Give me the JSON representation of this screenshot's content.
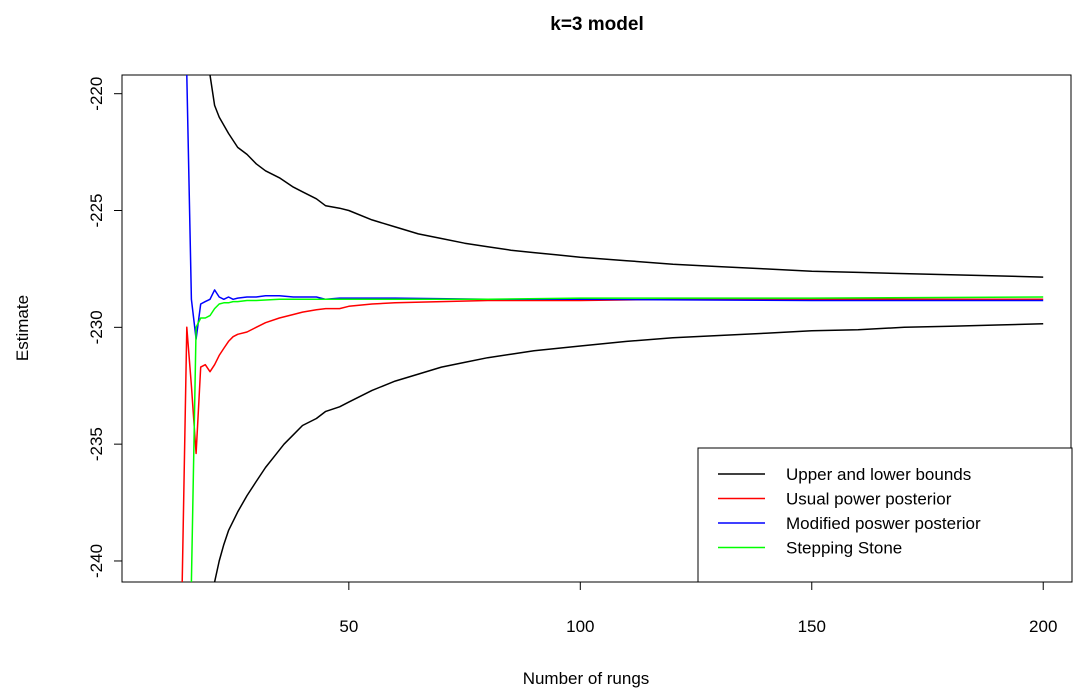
{
  "chart_data": {
    "type": "line",
    "title": "k=3 model",
    "xlabel": "Number of rungs",
    "ylabel": "Estimate",
    "xlim": [
      1,
      206
    ],
    "ylim": [
      -240.9,
      -219.2
    ],
    "x_ticks": [
      50,
      100,
      150,
      200
    ],
    "y_ticks": [
      -240,
      -235,
      -230,
      -225,
      -220
    ],
    "grid": false,
    "legend_position": "bottom-right",
    "series": [
      {
        "name": "Upper and lower bounds",
        "color": "#000000",
        "x": [
          20,
          21,
          22,
          24,
          26,
          28,
          30,
          32,
          35,
          38,
          40,
          43,
          45,
          48,
          50,
          55,
          60,
          65,
          70,
          75,
          80,
          85,
          90,
          95,
          100,
          110,
          120,
          130,
          140,
          150,
          160,
          170,
          180,
          190,
          200
        ],
        "y": [
          -219.2,
          -220.5,
          -221.0,
          -221.7,
          -222.3,
          -222.6,
          -223.0,
          -223.3,
          -223.6,
          -224.0,
          -224.2,
          -224.5,
          -224.8,
          -224.9,
          -225.0,
          -225.4,
          -225.7,
          -226.0,
          -226.2,
          -226.4,
          -226.55,
          -226.7,
          -226.8,
          -226.9,
          -227.0,
          -227.15,
          -227.3,
          -227.4,
          -227.5,
          -227.6,
          -227.65,
          -227.7,
          -227.75,
          -227.8,
          -227.85
        ]
      },
      {
        "name": "",
        "color": "#000000",
        "x": [
          21,
          22,
          23,
          24,
          26,
          28,
          30,
          32,
          34,
          36,
          38,
          40,
          43,
          45,
          48,
          50,
          55,
          60,
          65,
          70,
          75,
          80,
          85,
          90,
          95,
          100,
          110,
          120,
          130,
          140,
          150,
          160,
          170,
          180,
          190,
          200
        ],
        "y": [
          -240.9,
          -240.0,
          -239.3,
          -238.7,
          -237.9,
          -237.2,
          -236.6,
          -236.0,
          -235.5,
          -235.0,
          -234.6,
          -234.2,
          -233.9,
          -233.6,
          -233.4,
          -233.2,
          -232.7,
          -232.3,
          -232.0,
          -231.7,
          -231.5,
          -231.3,
          -231.15,
          -231.0,
          -230.9,
          -230.8,
          -230.6,
          -230.45,
          -230.35,
          -230.25,
          -230.15,
          -230.1,
          -230.0,
          -229.95,
          -229.9,
          -229.85
        ]
      },
      {
        "name": "Usual power posterior",
        "color": "#ff0000",
        "x": [
          14,
          15,
          16,
          17,
          18,
          19,
          20,
          21,
          22,
          23,
          24,
          25,
          26,
          28,
          30,
          32,
          35,
          38,
          40,
          43,
          45,
          48,
          50,
          55,
          60,
          70,
          80,
          100,
          120,
          150,
          200
        ],
        "y": [
          -240.9,
          -230.0,
          -232.5,
          -235.4,
          -231.7,
          -231.6,
          -231.9,
          -231.6,
          -231.2,
          -230.9,
          -230.6,
          -230.4,
          -230.3,
          -230.2,
          -230.0,
          -229.8,
          -229.6,
          -229.45,
          -229.35,
          -229.25,
          -229.2,
          -229.2,
          -229.1,
          -229.0,
          -228.95,
          -228.9,
          -228.85,
          -228.85,
          -228.8,
          -228.8,
          -228.8
        ]
      },
      {
        "name": "Modified poswer posterior",
        "color": "#0000ff",
        "x": [
          15,
          16,
          17,
          18,
          19,
          20,
          21,
          22,
          23,
          24,
          25,
          26,
          28,
          30,
          32,
          35,
          38,
          40,
          43,
          45,
          48,
          50,
          55,
          60,
          80,
          100,
          150,
          200
        ],
        "y": [
          -219.2,
          -228.8,
          -230.5,
          -229.0,
          -228.9,
          -228.8,
          -228.4,
          -228.7,
          -228.8,
          -228.7,
          -228.8,
          -228.75,
          -228.7,
          -228.7,
          -228.65,
          -228.65,
          -228.7,
          -228.7,
          -228.7,
          -228.8,
          -228.75,
          -228.75,
          -228.75,
          -228.75,
          -228.8,
          -228.8,
          -228.85,
          -228.85
        ]
      },
      {
        "name": "Stepping Stone",
        "color": "#00ff00",
        "x": [
          16,
          17,
          18,
          19,
          20,
          21,
          22,
          23,
          24,
          25,
          26,
          28,
          30,
          35,
          40,
          45,
          50,
          60,
          80,
          100,
          150,
          200
        ],
        "y": [
          -240.9,
          -230.0,
          -229.6,
          -229.6,
          -229.5,
          -229.2,
          -229.0,
          -228.95,
          -228.95,
          -228.9,
          -228.9,
          -228.85,
          -228.85,
          -228.8,
          -228.8,
          -228.8,
          -228.8,
          -228.8,
          -228.8,
          -228.75,
          -228.75,
          -228.7
        ]
      }
    ]
  }
}
